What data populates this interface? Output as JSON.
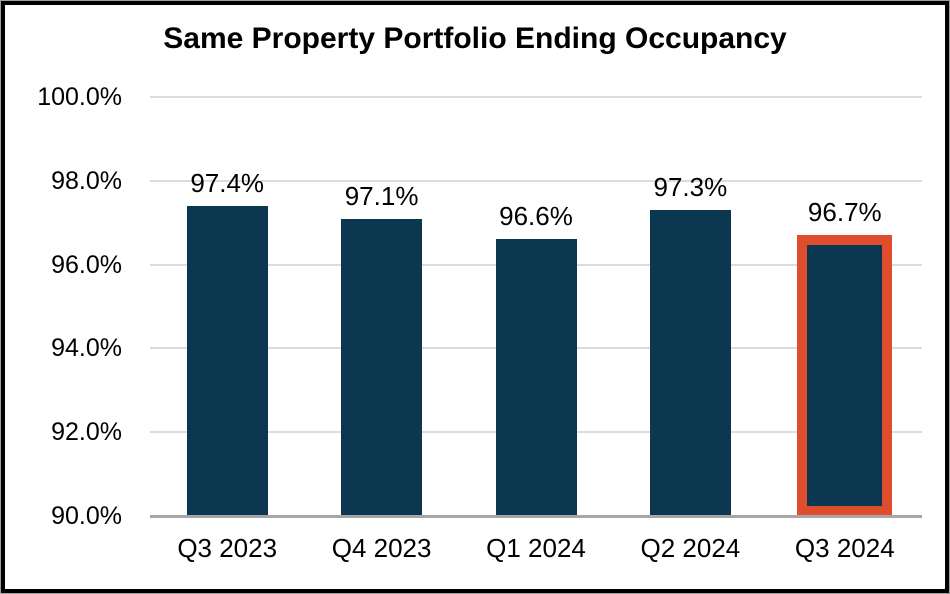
{
  "chart_data": {
    "type": "bar",
    "title": "Same Property Portfolio Ending Occupancy",
    "categories": [
      "Q3 2023",
      "Q4 2023",
      "Q1 2024",
      "Q2 2024",
      "Q3 2024"
    ],
    "values": [
      97.4,
      97.1,
      96.6,
      97.3,
      96.7
    ],
    "data_labels": [
      "97.4%",
      "97.1%",
      "96.6%",
      "97.3%",
      "96.7%"
    ],
    "highlighted_index": 4,
    "xlabel": "",
    "ylabel": "",
    "ylim": [
      90,
      100
    ],
    "ytick_step": 2,
    "yticks": [
      100,
      98,
      96,
      94,
      92,
      90
    ],
    "ytick_labels": [
      "100.0%",
      "98.0%",
      "96.0%",
      "94.0%",
      "92.0%",
      "90.0%"
    ],
    "grid": true,
    "legend": "none",
    "colors": {
      "bar": "#0B3751",
      "highlight_border": "#E04D2C",
      "gridline": "#DCDCDC",
      "axis_line": "#A6A6A6",
      "frame_border": "#000000",
      "background": "#FFFFFF",
      "text": "#000000"
    }
  }
}
